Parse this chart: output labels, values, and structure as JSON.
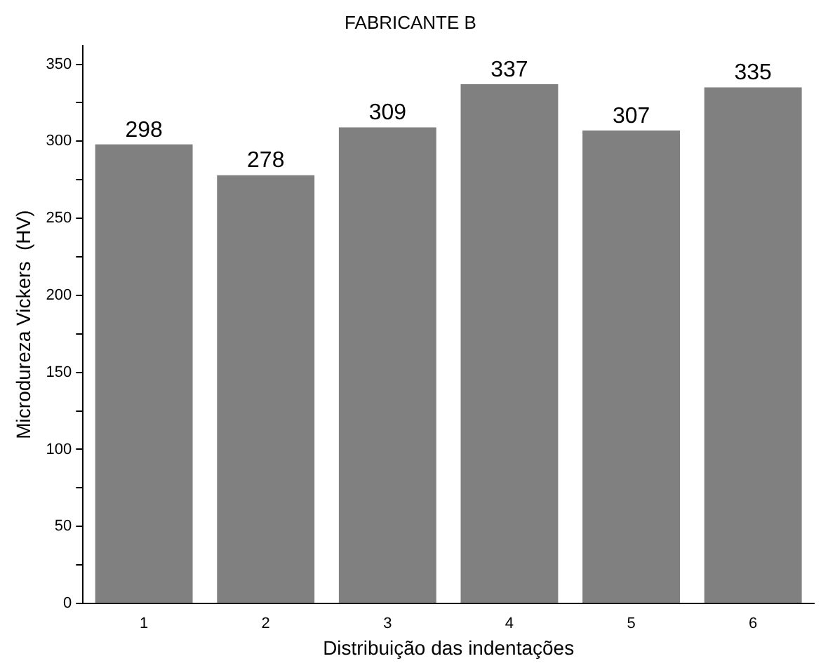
{
  "chart_data": {
    "type": "bar",
    "title": "FABRICANTE B",
    "xlabel": "Distribuição das indentações",
    "ylabel": "Microdureza Vickers  (HV)",
    "categories": [
      "1",
      "2",
      "3",
      "4",
      "5",
      "6"
    ],
    "values": [
      298,
      278,
      309,
      337,
      307,
      335
    ],
    "color": "#808080",
    "ylim": [
      0,
      362
    ],
    "yticks": [
      0,
      {
        "value": 25,
        "label": null
      },
      50,
      {
        "value": 75,
        "label": null
      },
      100,
      {
        "value": 125,
        "label": null
      },
      150,
      {
        "value": 175,
        "label": null
      },
      200,
      {
        "value": 225,
        "label": null
      },
      250,
      {
        "value": 275,
        "label": null
      },
      300,
      {
        "value": 325,
        "label": null
      },
      350
    ],
    "data_labels": true,
    "grid": false,
    "legend": false
  }
}
